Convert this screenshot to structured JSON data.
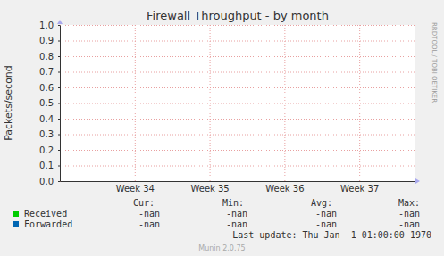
{
  "chart_data": {
    "type": "line",
    "title": "Firewall Throughput - by month",
    "y_label": "Packets/second",
    "x": [],
    "series": [
      {
        "name": "Received",
        "color": "#00cc00",
        "values": [],
        "cur": "-nan",
        "min": "-nan",
        "avg": "-nan",
        "max": "-nan"
      },
      {
        "name": "Forwarded",
        "color": "#0066b3",
        "values": [],
        "cur": "-nan",
        "min": "-nan",
        "avg": "-nan",
        "max": "-nan"
      }
    ],
    "xlim": [
      33.5,
      38.25
    ],
    "xticks": [
      {
        "value": 34.5,
        "label": "Week 34"
      },
      {
        "value": 35.5,
        "label": "Week 35"
      },
      {
        "value": 36.5,
        "label": "Week 36"
      },
      {
        "value": 37.5,
        "label": "Week 37"
      }
    ],
    "ylim": [
      0,
      1
    ],
    "yticks": [
      {
        "value": 0,
        "label": "0.0"
      },
      0.1,
      0.2,
      0.3,
      0.4,
      0.5,
      0.6,
      0.7,
      0.8,
      0.9,
      {
        "value": 1,
        "label": "1.0"
      }
    ],
    "grid": true,
    "legend": "bottom-left",
    "stat_headers": [
      "Cur:",
      "Min:",
      "Avg:",
      "Max:"
    ],
    "last_update": "Last update: Thu Jan  1 01:00:00 1970",
    "footer": "Munin 2.0.75",
    "side_text": "RRDTOOL / TOBI OETIKER"
  }
}
